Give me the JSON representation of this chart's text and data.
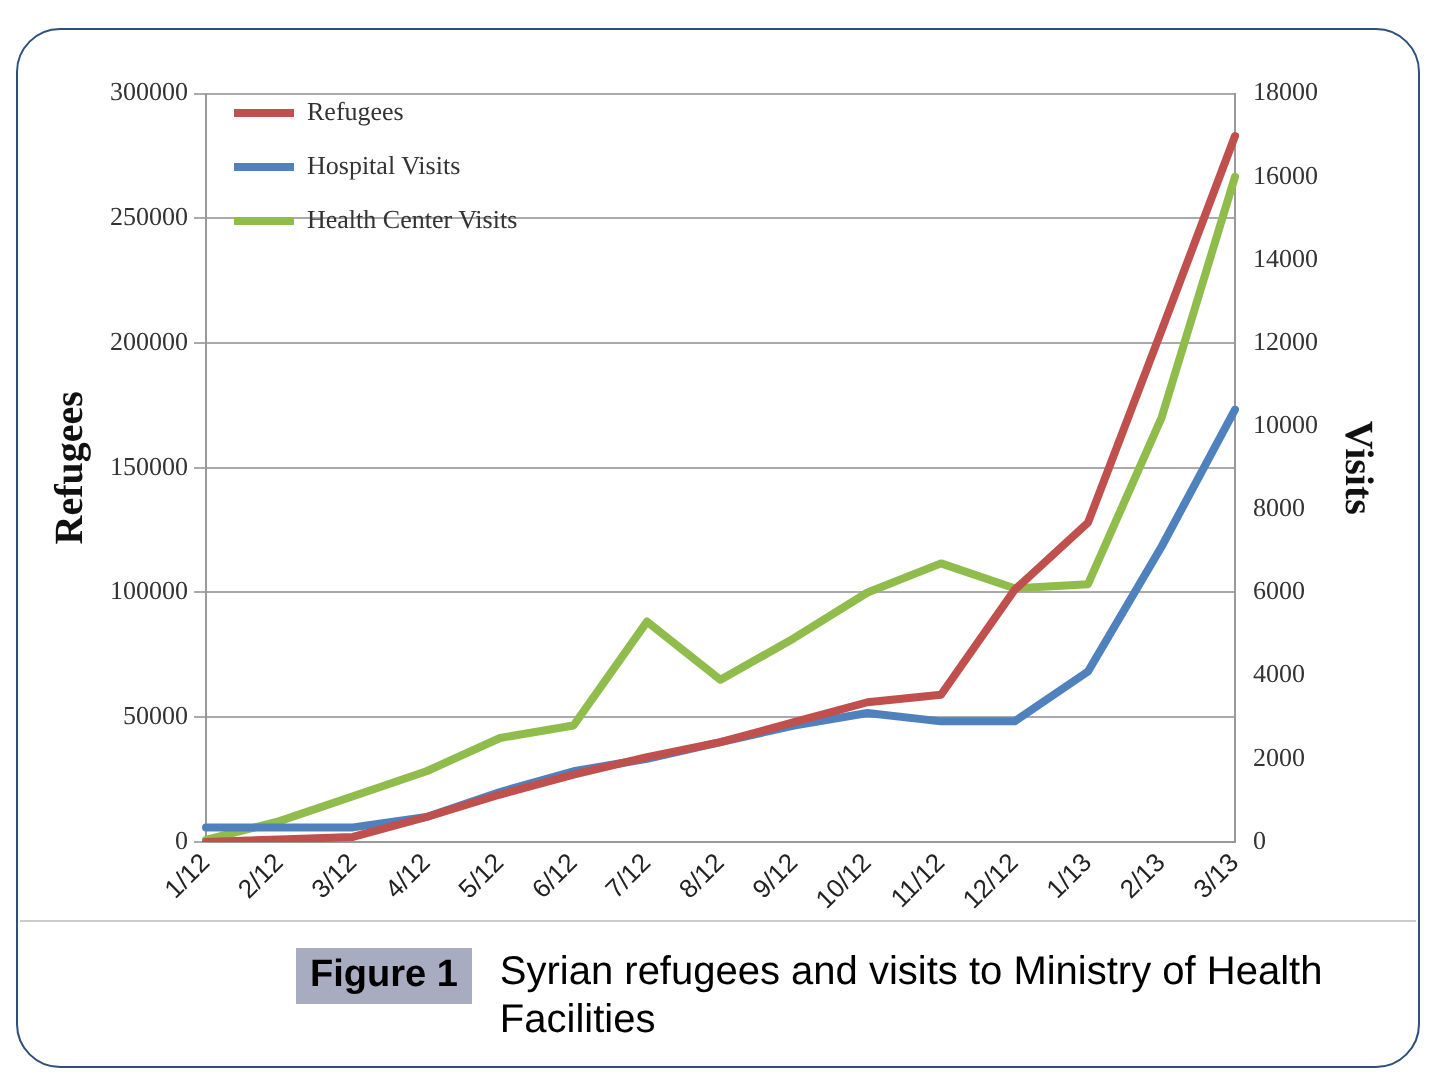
{
  "chart_data": {
    "type": "line",
    "title": "Syrian refugees and visits to Ministry of Health Facilities",
    "annotations": [
      "Figure 1"
    ],
    "ylabel": "Refugees",
    "y2label": "Visits",
    "categories": [
      "1/12",
      "2/12",
      "3/12",
      "4/12",
      "5/12",
      "6/12",
      "7/12",
      "8/12",
      "9/12",
      "10/12",
      "11/12",
      "12/12",
      "1/13",
      "2/13",
      "3/13"
    ],
    "series": [
      {
        "name": "Refugees",
        "color": "#c0504d",
        "values": [
          0,
          1000,
          2000,
          10000,
          19000,
          27000,
          34000,
          40000,
          48000,
          56000,
          59000,
          101000,
          128000,
          205000,
          283000
        ]
      },
      {
        "name": "Hospital Visits",
        "color": "#4f81bd",
        "axis": "y2",
        "values": [
          350,
          350,
          350,
          600,
          1200,
          1700,
          2000,
          2400,
          2800,
          3100,
          2900,
          2900,
          4100,
          7100,
          10400
        ]
      },
      {
        "name": "Health Center Visits",
        "color": "#8fbc4b",
        "axis": "y2",
        "values": [
          50,
          500,
          1100,
          1700,
          2500,
          2800,
          5300,
          3900,
          4900,
          6000,
          6700,
          6100,
          6200,
          10200,
          16000
        ]
      }
    ],
    "ylim": [
      0,
      300000
    ],
    "yticks": [
      0,
      50000,
      100000,
      150000,
      200000,
      250000,
      300000
    ],
    "y2lim": [
      0,
      18000
    ],
    "y2ticks": [
      0,
      2000,
      4000,
      6000,
      8000,
      10000,
      12000,
      14000,
      16000,
      18000
    ],
    "grid": "y",
    "legend": "top left",
    "marker": "none",
    "line_style": "solid"
  }
}
